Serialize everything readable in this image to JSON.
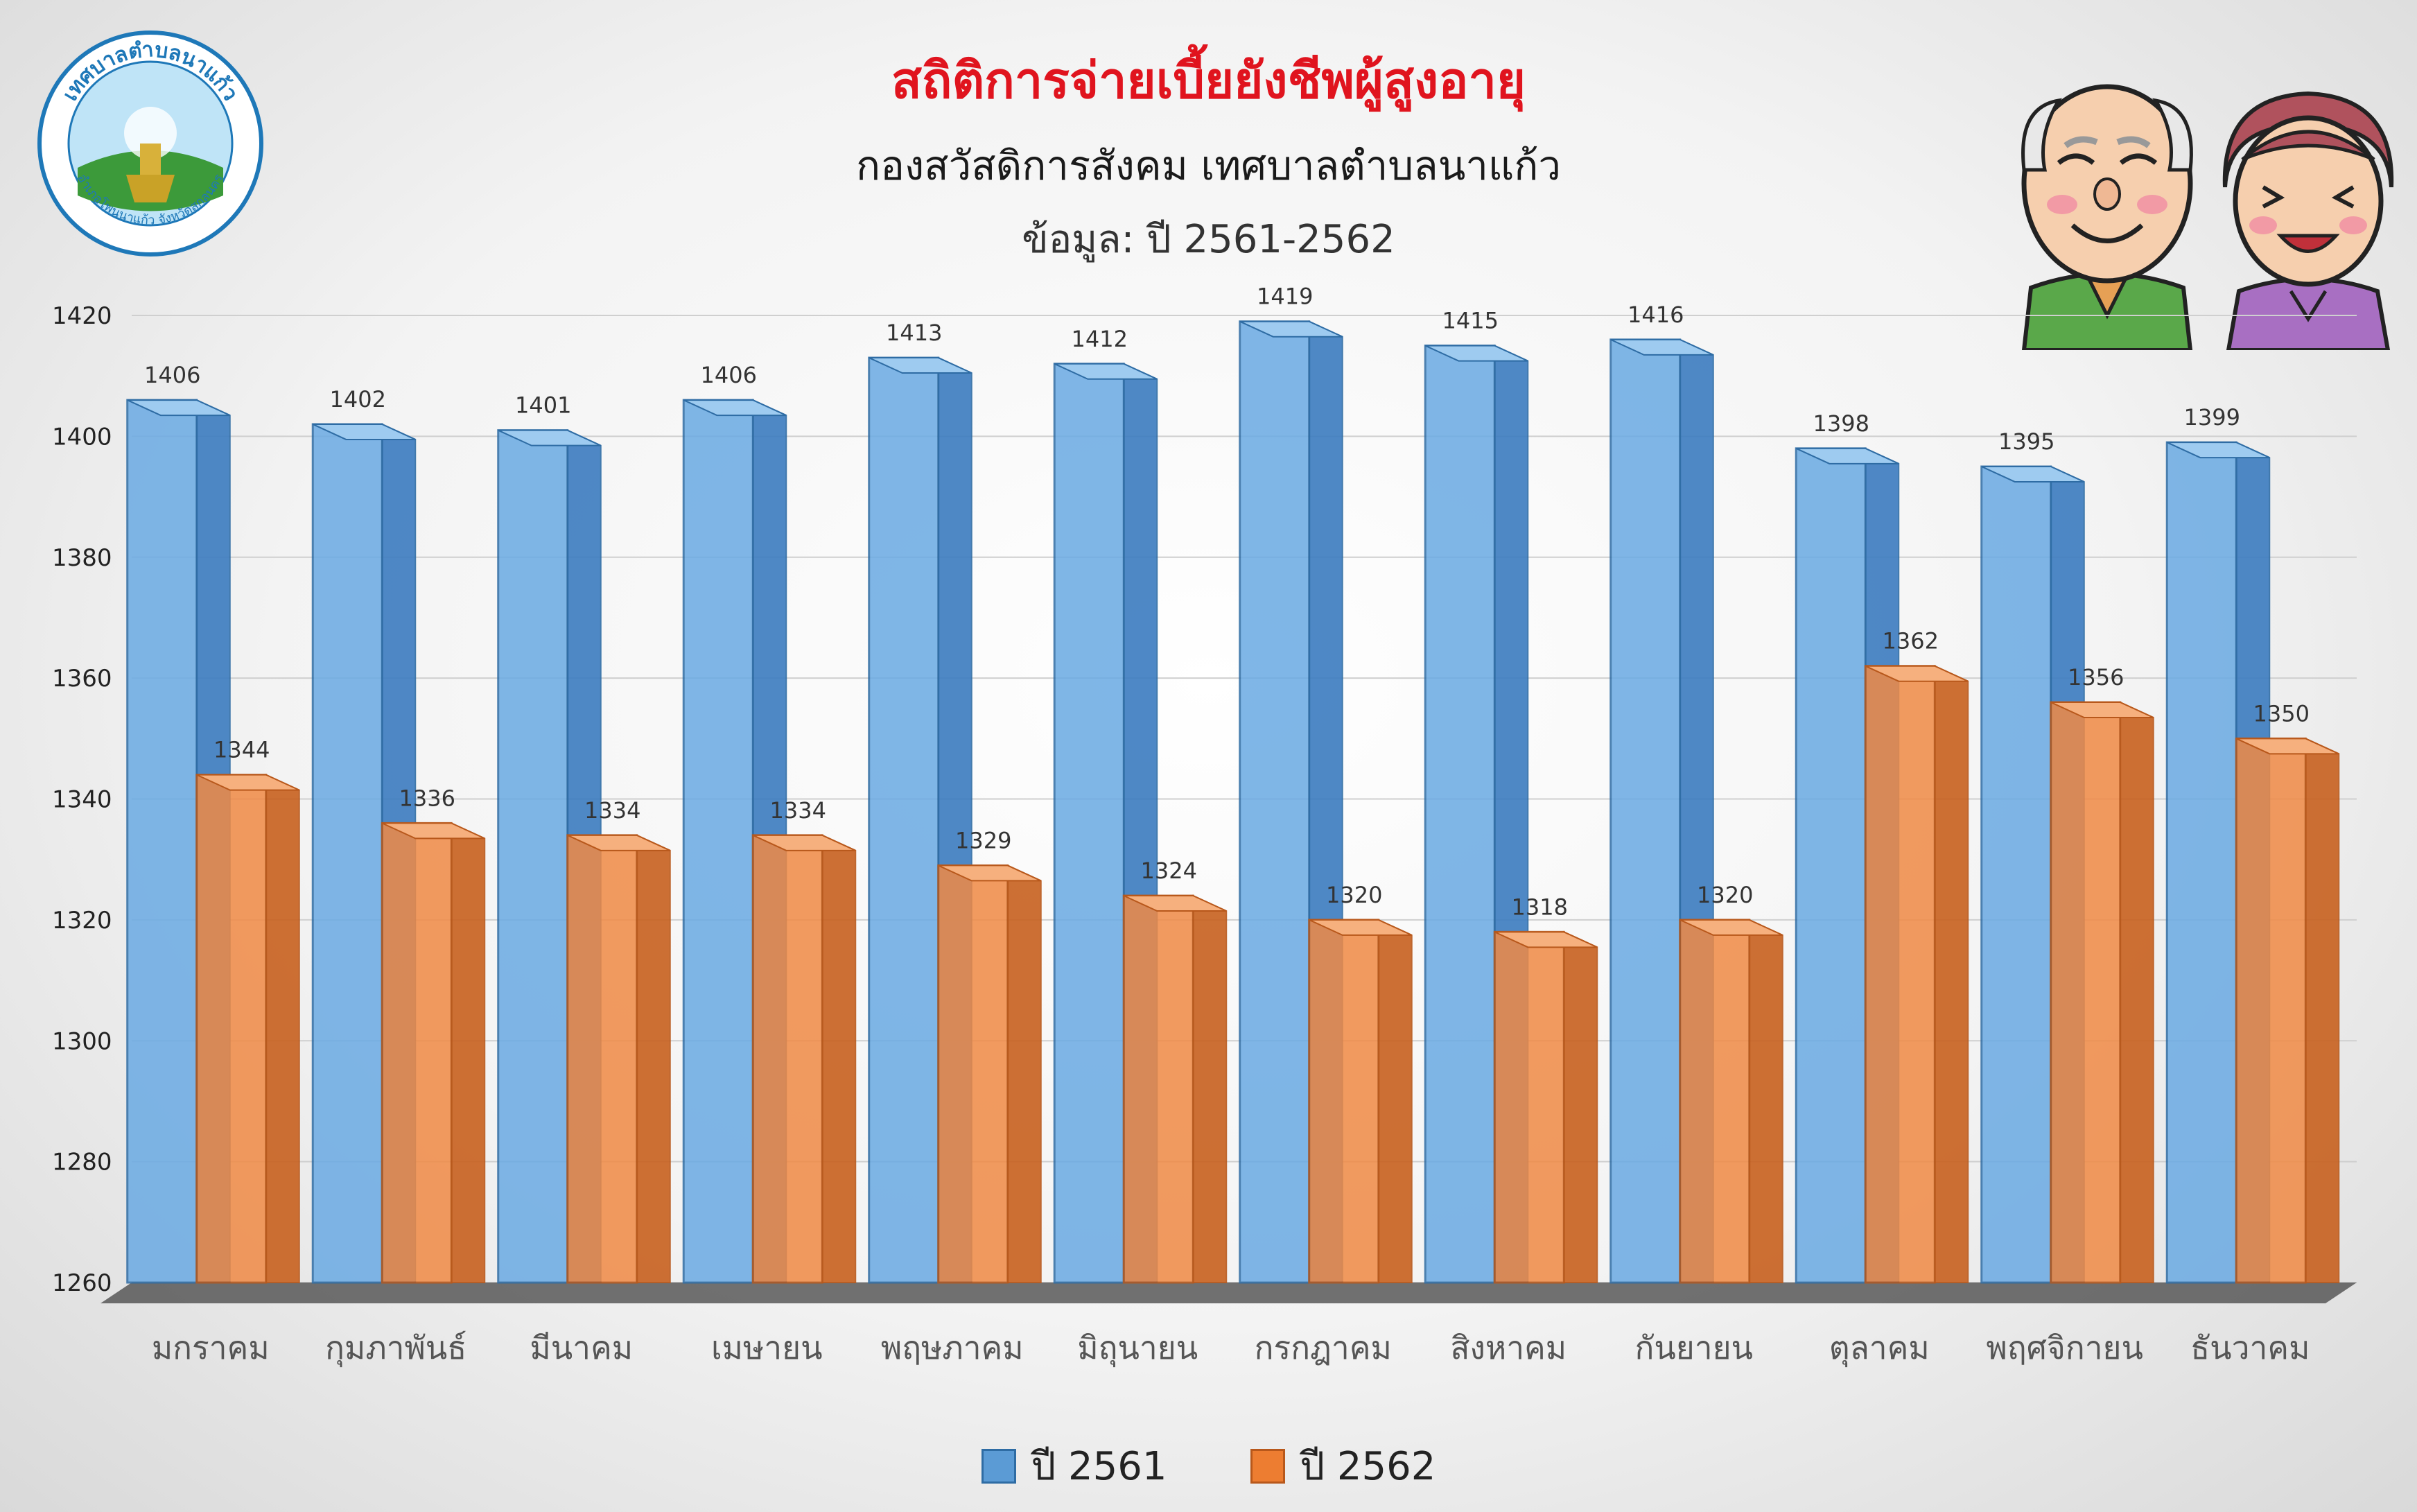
{
  "header": {
    "title": "สถิติการจ่ายเบี้ยยังชีพผู้สูงอายุ",
    "subtitle": "กองสวัสดิการสังคม เทศบาลตำบลนาแก้ว",
    "dateline": "ข้อมูล: ปี 2561-2562"
  },
  "logo": {
    "ring_text": "เทศบาลตำบลนาแก้ว",
    "bottom_text": "อำเภอโพนนาแก้ว จังหวัดสกลนคร"
  },
  "colors": {
    "series_2561": "#5b9bd5",
    "series_2562": "#ed7d31",
    "title": "#e0141e"
  },
  "chart_data": {
    "type": "bar",
    "title": "สถิติการจ่ายเบี้ยยังชีพผู้สูงอายุ",
    "xlabel": "",
    "ylabel": "",
    "ylim": [
      1260,
      1420
    ],
    "yticks": [
      1260,
      1280,
      1300,
      1320,
      1340,
      1360,
      1380,
      1400,
      1420
    ],
    "grid": true,
    "legend_position": "bottom",
    "categories": [
      "มกราคม",
      "กุมภาพันธ์",
      "มีนาคม",
      "เมษายน",
      "พฤษภาคม",
      "มิถุนายน",
      "กรกฎาคม",
      "สิงหาคม",
      "กันยายน",
      "ตุลาคม",
      "พฤศจิกายน",
      "ธันวาคม"
    ],
    "series": [
      {
        "name": "ปี 2561",
        "values": [
          1406,
          1402,
          1401,
          1406,
          1413,
          1412,
          1419,
          1415,
          1416,
          1398,
          1395,
          1399
        ]
      },
      {
        "name": "ปี 2562",
        "values": [
          1344,
          1336,
          1334,
          1334,
          1329,
          1324,
          1320,
          1318,
          1320,
          1362,
          1356,
          1350
        ]
      }
    ]
  }
}
